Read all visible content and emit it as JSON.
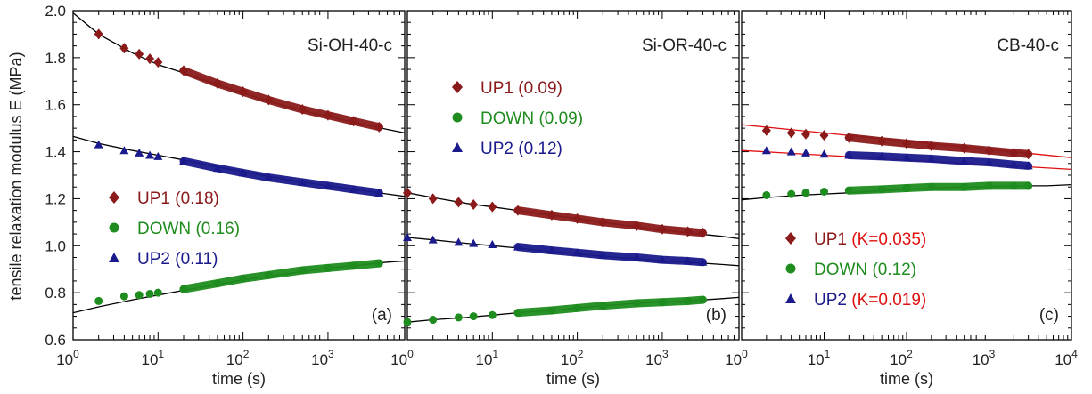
{
  "figure": {
    "ylabel": "tensile relaxation modulus E (MPa)",
    "yticks": [
      "0.6",
      "0.8",
      "1.0",
      "1.2",
      "1.4",
      "1.6",
      "1.8",
      "2.0"
    ]
  },
  "colors": {
    "UP1": "#8b1a1a",
    "DOWN": "#1e8c1e",
    "UP2": "#1a1a8c",
    "fit": "#000000",
    "fit_red": "#e01010",
    "K_text": "#e01010"
  },
  "chart_data": [
    {
      "type": "scatter",
      "title": "Si-OH-40-c",
      "panel_label": "(a)",
      "xlabel": "time (s)",
      "xscale": "log",
      "xlim": [
        1,
        8000
      ],
      "ylim": [
        0.6,
        2.0
      ],
      "xticks": [
        {
          "base": "10",
          "exp": "0"
        },
        {
          "base": "10",
          "exp": "1"
        },
        {
          "base": "10",
          "exp": "2"
        },
        {
          "base": "10",
          "exp": "3"
        }
      ],
      "legend": {
        "placement": "middle-left",
        "entries": [
          {
            "series": "UP1",
            "label": "UP1",
            "param": "(0.18)"
          },
          {
            "series": "DOWN",
            "label": "DOWN",
            "param": "(0.16)"
          },
          {
            "series": "UP2",
            "label": "UP2",
            "param": "(0.11)"
          }
        ]
      },
      "series": [
        {
          "name": "UP1",
          "marker": "diamond",
          "x": [
            2,
            4,
            6,
            8,
            10,
            20,
            50,
            100,
            200,
            500,
            1000,
            2000,
            4000
          ],
          "y": [
            1.9,
            1.84,
            1.815,
            1.795,
            1.78,
            1.745,
            1.69,
            1.655,
            1.62,
            1.58,
            1.555,
            1.53,
            1.505
          ],
          "fit": {
            "x": [
              1,
              2,
              5,
              10,
              20,
              50,
              100,
              200,
              500,
              1000,
              2000,
              5000,
              8000
            ],
            "y": [
              1.99,
              1.9,
              1.82,
              1.77,
              1.735,
              1.685,
              1.65,
              1.615,
              1.575,
              1.55,
              1.525,
              1.495,
              1.48
            ]
          }
        },
        {
          "name": "DOWN",
          "marker": "circle",
          "x": [
            2,
            4,
            6,
            8,
            10,
            20,
            50,
            100,
            200,
            500,
            1000,
            2000,
            4000
          ],
          "y": [
            0.765,
            0.785,
            0.79,
            0.795,
            0.8,
            0.815,
            0.84,
            0.86,
            0.875,
            0.895,
            0.905,
            0.915,
            0.925
          ],
          "fit": {
            "x": [
              1,
              2,
              5,
              10,
              20,
              50,
              100,
              200,
              500,
              1000,
              2000,
              5000,
              8000
            ],
            "y": [
              0.715,
              0.74,
              0.77,
              0.79,
              0.81,
              0.835,
              0.855,
              0.87,
              0.89,
              0.905,
              0.915,
              0.93,
              0.935
            ]
          }
        },
        {
          "name": "UP2",
          "marker": "triangle",
          "x": [
            2,
            4,
            6,
            8,
            10,
            20,
            50,
            100,
            200,
            500,
            1000,
            2000,
            4000
          ],
          "y": [
            1.43,
            1.405,
            1.395,
            1.385,
            1.38,
            1.36,
            1.33,
            1.31,
            1.29,
            1.27,
            1.255,
            1.24,
            1.225
          ],
          "fit": {
            "x": [
              1,
              2,
              5,
              10,
              20,
              50,
              100,
              200,
              500,
              1000,
              2000,
              5000,
              8000
            ],
            "y": [
              1.465,
              1.435,
              1.405,
              1.385,
              1.365,
              1.335,
              1.315,
              1.295,
              1.27,
              1.255,
              1.24,
              1.22,
              1.21
            ]
          }
        }
      ]
    },
    {
      "type": "scatter",
      "title": "Si-OR-40-c",
      "panel_label": "(b)",
      "xlabel": "time (s)",
      "xscale": "log",
      "xlim": [
        1,
        8000
      ],
      "ylim": [
        0.6,
        2.0
      ],
      "xticks": [
        {
          "base": "10",
          "exp": "0"
        },
        {
          "base": "10",
          "exp": "1"
        },
        {
          "base": "10",
          "exp": "2"
        },
        {
          "base": "10",
          "exp": "3"
        }
      ],
      "legend": {
        "placement": "top-left",
        "entries": [
          {
            "series": "UP1",
            "label": "UP1",
            "param": "(0.09)"
          },
          {
            "series": "DOWN",
            "label": "DOWN",
            "param": "(0.09)"
          },
          {
            "series": "UP2",
            "label": "UP2",
            "param": "(0.12)"
          }
        ]
      },
      "series": [
        {
          "name": "UP1",
          "marker": "diamond",
          "x": [
            1,
            2,
            4,
            6,
            10,
            20,
            50,
            100,
            200,
            500,
            1000,
            2000,
            3000
          ],
          "y": [
            1.225,
            1.2,
            1.185,
            1.175,
            1.165,
            1.15,
            1.13,
            1.115,
            1.1,
            1.085,
            1.07,
            1.06,
            1.055
          ],
          "fit": {
            "x": [
              1,
              2,
              5,
              10,
              20,
              50,
              100,
              200,
              500,
              1000,
              2000,
              5000,
              8000
            ],
            "y": [
              1.225,
              1.205,
              1.18,
              1.165,
              1.15,
              1.13,
              1.115,
              1.1,
              1.08,
              1.065,
              1.055,
              1.04,
              1.03
            ]
          }
        },
        {
          "name": "DOWN",
          "marker": "circle",
          "x": [
            1,
            2,
            4,
            6,
            10,
            20,
            50,
            100,
            200,
            500,
            1000,
            2000,
            3000
          ],
          "y": [
            0.675,
            0.685,
            0.695,
            0.7,
            0.705,
            0.715,
            0.725,
            0.735,
            0.745,
            0.755,
            0.76,
            0.765,
            0.77
          ],
          "fit": {
            "x": [
              1,
              2,
              5,
              10,
              20,
              50,
              100,
              200,
              500,
              1000,
              2000,
              5000,
              8000
            ],
            "y": [
              0.675,
              0.685,
              0.695,
              0.705,
              0.715,
              0.725,
              0.735,
              0.745,
              0.755,
              0.76,
              0.765,
              0.775,
              0.78
            ]
          }
        },
        {
          "name": "UP2",
          "marker": "triangle",
          "x": [
            1,
            2,
            4,
            6,
            10,
            20,
            50,
            100,
            200,
            500,
            1000,
            2000,
            3000
          ],
          "y": [
            1.035,
            1.025,
            1.015,
            1.01,
            1.005,
            0.995,
            0.98,
            0.97,
            0.96,
            0.95,
            0.94,
            0.935,
            0.93
          ],
          "fit": {
            "x": [
              1,
              2,
              5,
              10,
              20,
              50,
              100,
              200,
              500,
              1000,
              2000,
              5000,
              8000
            ],
            "y": [
              1.035,
              1.025,
              1.01,
              1.0,
              0.99,
              0.975,
              0.965,
              0.955,
              0.945,
              0.935,
              0.93,
              0.92,
              0.915
            ]
          }
        }
      ]
    },
    {
      "type": "scatter",
      "title": "CB-40-c",
      "panel_label": "(c)",
      "xlabel": "time (s)",
      "xscale": "log",
      "xlim": [
        1,
        10000
      ],
      "ylim": [
        0.6,
        2.0
      ],
      "xticks": [
        {
          "base": "10",
          "exp": "0"
        },
        {
          "base": "10",
          "exp": "1"
        },
        {
          "base": "10",
          "exp": "2"
        },
        {
          "base": "10",
          "exp": "3"
        },
        {
          "base": "10",
          "exp": "4"
        }
      ],
      "legend": {
        "placement": "bottom-left",
        "entries": [
          {
            "series": "UP1",
            "label": "UP1",
            "param": "(K=0.035)",
            "param_color": "red"
          },
          {
            "series": "DOWN",
            "label": "DOWN",
            "param": "(0.12)"
          },
          {
            "series": "UP2",
            "label": "UP2",
            "param": "(K=0.019)",
            "param_color": "red"
          }
        ]
      },
      "series": [
        {
          "name": "UP1",
          "marker": "diamond",
          "x": [
            2,
            4,
            6,
            10,
            20,
            50,
            100,
            200,
            500,
            1000,
            2000,
            3000
          ],
          "y": [
            1.49,
            1.48,
            1.475,
            1.47,
            1.46,
            1.445,
            1.435,
            1.425,
            1.415,
            1.405,
            1.395,
            1.39
          ],
          "fit": {
            "line": "red",
            "x": [
              1,
              10000
            ],
            "y": [
              1.515,
              1.375
            ]
          }
        },
        {
          "name": "DOWN",
          "marker": "circle",
          "x": [
            2,
            4,
            6,
            10,
            20,
            50,
            100,
            200,
            500,
            1000,
            2000,
            3000
          ],
          "y": [
            1.215,
            1.22,
            1.225,
            1.23,
            1.235,
            1.24,
            1.245,
            1.25,
            1.25,
            1.255,
            1.255,
            1.255
          ],
          "fit": {
            "line": "black",
            "x": [
              1,
              2,
              5,
              10,
              20,
              50,
              100,
              200,
              500,
              1000,
              2000,
              5000,
              10000
            ],
            "y": [
              1.195,
              1.205,
              1.215,
              1.22,
              1.225,
              1.235,
              1.24,
              1.245,
              1.25,
              1.25,
              1.255,
              1.255,
              1.26
            ]
          }
        },
        {
          "name": "UP2",
          "marker": "triangle",
          "x": [
            2,
            4,
            6,
            10,
            20,
            50,
            100,
            200,
            500,
            1000,
            2000,
            3000
          ],
          "y": [
            1.405,
            1.4,
            1.395,
            1.39,
            1.385,
            1.38,
            1.375,
            1.37,
            1.36,
            1.355,
            1.345,
            1.34
          ],
          "fit": {
            "line": "red",
            "x": [
              1,
              10000
            ],
            "y": [
              1.405,
              1.325
            ]
          }
        }
      ]
    }
  ]
}
